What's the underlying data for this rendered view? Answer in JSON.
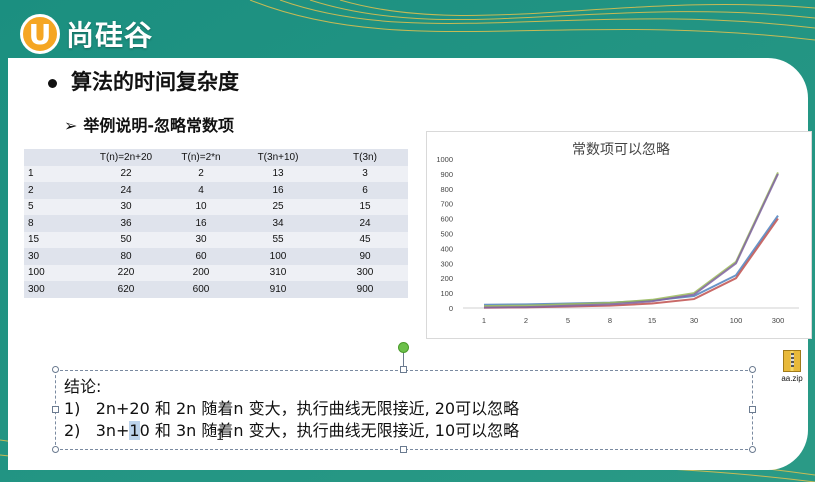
{
  "brand": {
    "logo_letter": "U",
    "logo_text": "尚硅谷"
  },
  "slide": {
    "title": "算法的时间复杂度",
    "subtitle": "举例说明-忽略常数项"
  },
  "table": {
    "headers": [
      "",
      "T(n)=2n+20",
      "T(n)=2*n",
      "T(3n+10)",
      "T(3n)"
    ],
    "rows": [
      [
        "1",
        "22",
        "2",
        "13",
        "3"
      ],
      [
        "2",
        "24",
        "4",
        "16",
        "6"
      ],
      [
        "5",
        "30",
        "10",
        "25",
        "15"
      ],
      [
        "8",
        "36",
        "16",
        "34",
        "24"
      ],
      [
        "15",
        "50",
        "30",
        "55",
        "45"
      ],
      [
        "30",
        "80",
        "60",
        "100",
        "90"
      ],
      [
        "100",
        "220",
        "200",
        "310",
        "300"
      ],
      [
        "300",
        "620",
        "600",
        "910",
        "900"
      ]
    ]
  },
  "chart_data": {
    "type": "line",
    "title": "常数项可以忽略",
    "categories": [
      "1",
      "2",
      "5",
      "8",
      "15",
      "30",
      "100",
      "300"
    ],
    "ylim": [
      0,
      1000
    ],
    "yticks": [
      0,
      100,
      200,
      300,
      400,
      500,
      600,
      700,
      800,
      900,
      1000
    ],
    "grid": false,
    "series": [
      {
        "values": [
          22,
          24,
          30,
          36,
          50,
          80,
          220,
          620
        ],
        "color": "#4f81bd"
      },
      {
        "values": [
          2,
          4,
          10,
          16,
          30,
          60,
          200,
          600
        ],
        "color": "#c0504d"
      },
      {
        "values": [
          13,
          16,
          25,
          34,
          55,
          100,
          310,
          910
        ],
        "color": "#9bbb59"
      },
      {
        "values": [
          3,
          6,
          15,
          24,
          45,
          90,
          300,
          900
        ],
        "color": "#8064a2"
      }
    ]
  },
  "conclusion": {
    "heading": "结论:",
    "items": [
      {
        "num": "1)",
        "text": "2n+20 和 2n 随着n 变大，执行曲线无限接近, 20可以忽略"
      },
      {
        "num": "2)",
        "pre": "3n+",
        "hl": "1",
        "post": "0 和 3n 随着n 变大，执行曲线无限接近, 10可以忽略"
      }
    ]
  },
  "desktop_file": {
    "name": "aa.zip",
    "icon": "zip-file-icon"
  }
}
